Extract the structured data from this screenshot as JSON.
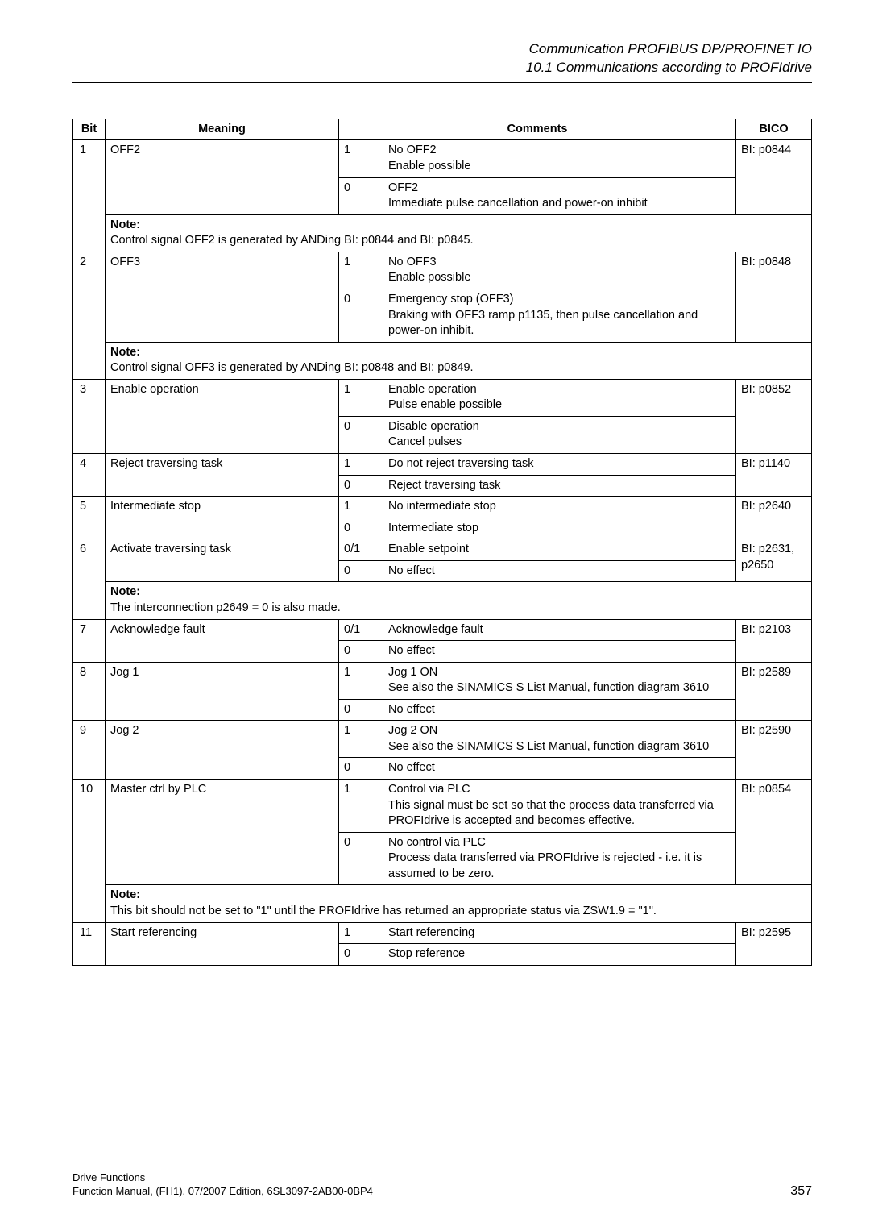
{
  "header": {
    "line1": "Communication PROFIBUS DP/PROFINET IO",
    "line2": "10.1 Communications according to PROFIdrive"
  },
  "table": {
    "headers": {
      "bit": "Bit",
      "meaning": "Meaning",
      "comments": "Comments",
      "bico": "BICO"
    }
  },
  "rows": {
    "b1": {
      "bit": "1",
      "meaning": "OFF2",
      "v1": "1",
      "c1a": "No OFF2",
      "c1b": "Enable possible",
      "v0": "0",
      "c0a": "OFF2",
      "c0b": "Immediate pulse cancellation and power-on inhibit",
      "bico": "BI: p0844",
      "note_label": "Note:",
      "note": "Control signal OFF2 is generated by ANDing BI: p0844 and BI: p0845."
    },
    "b2": {
      "bit": "2",
      "meaning": "OFF3",
      "v1": "1",
      "c1a": "No OFF3",
      "c1b": "Enable possible",
      "v0": "0",
      "c0a": "Emergency stop (OFF3)",
      "c0b": "Braking with OFF3 ramp p1135, then pulse cancellation and power-on inhibit.",
      "bico": "BI: p0848",
      "note_label": "Note:",
      "note": "Control signal OFF3 is generated by ANDing BI: p0848 and BI: p0849."
    },
    "b3": {
      "bit": "3",
      "meaning": "Enable operation",
      "v1": "1",
      "c1a": "Enable operation",
      "c1b": "Pulse enable possible",
      "v0": "0",
      "c0a": "Disable operation",
      "c0b": "Cancel pulses",
      "bico": "BI: p0852"
    },
    "b4": {
      "bit": "4",
      "meaning": "Reject traversing task",
      "v1": "1",
      "c1": "Do not reject traversing task",
      "v0": "0",
      "c0": "Reject traversing task",
      "bico": "BI: p1140"
    },
    "b5": {
      "bit": "5",
      "meaning": "Intermediate stop",
      "v1": "1",
      "c1": "No intermediate stop",
      "v0": "0",
      "c0": "Intermediate stop",
      "bico": "BI: p2640"
    },
    "b6": {
      "bit": "6",
      "meaning": "Activate traversing task",
      "v1": "0/1",
      "c1": "Enable setpoint",
      "v0": "0",
      "c0": "No effect",
      "bico1": "BI: p2631,",
      "bico2": "p2650",
      "note_label": "Note:",
      "note": "The interconnection p2649 = 0 is also made."
    },
    "b7": {
      "bit": "7",
      "meaning": "Acknowledge fault",
      "v1": "0/1",
      "c1": "Acknowledge fault",
      "v0": "0",
      "c0": "No effect",
      "bico": "BI: p2103"
    },
    "b8": {
      "bit": "8",
      "meaning": "Jog 1",
      "v1": "1",
      "c1a": "Jog 1 ON",
      "c1b": "See also the SINAMICS S List Manual, function diagram 3610",
      "v0": "0",
      "c0": "No effect",
      "bico": "BI: p2589"
    },
    "b9": {
      "bit": "9",
      "meaning": "Jog 2",
      "v1": "1",
      "c1a": "Jog 2 ON",
      "c1b": "See also the SINAMICS S List Manual, function diagram 3610",
      "v0": "0",
      "c0": "No effect",
      "bico": "BI: p2590"
    },
    "b10": {
      "bit": "10",
      "meaning": "Master ctrl by PLC",
      "v1": "1",
      "c1a": "Control via PLC",
      "c1b": "This signal must be set so that the process data transferred via PROFIdrive is accepted and becomes effective.",
      "v0": "0",
      "c0a": "No control via PLC",
      "c0b": "Process data transferred via PROFIdrive is rejected - i.e. it is assumed to be zero.",
      "bico": "BI: p0854",
      "note_label": "Note:",
      "note": "This bit should not be set to \"1\" until the PROFIdrive has returned an appropriate status via ZSW1.9 = \"1\"."
    },
    "b11": {
      "bit": "11",
      "meaning": "Start referencing",
      "v1": "1",
      "c1": "Start referencing",
      "v0": "0",
      "c0": "Stop reference",
      "bico": "BI: p2595"
    }
  },
  "footer": {
    "line1": "Drive Functions",
    "line2": "Function Manual, (FH1), 07/2007 Edition, 6SL3097-2AB00-0BP4",
    "page": "357"
  }
}
